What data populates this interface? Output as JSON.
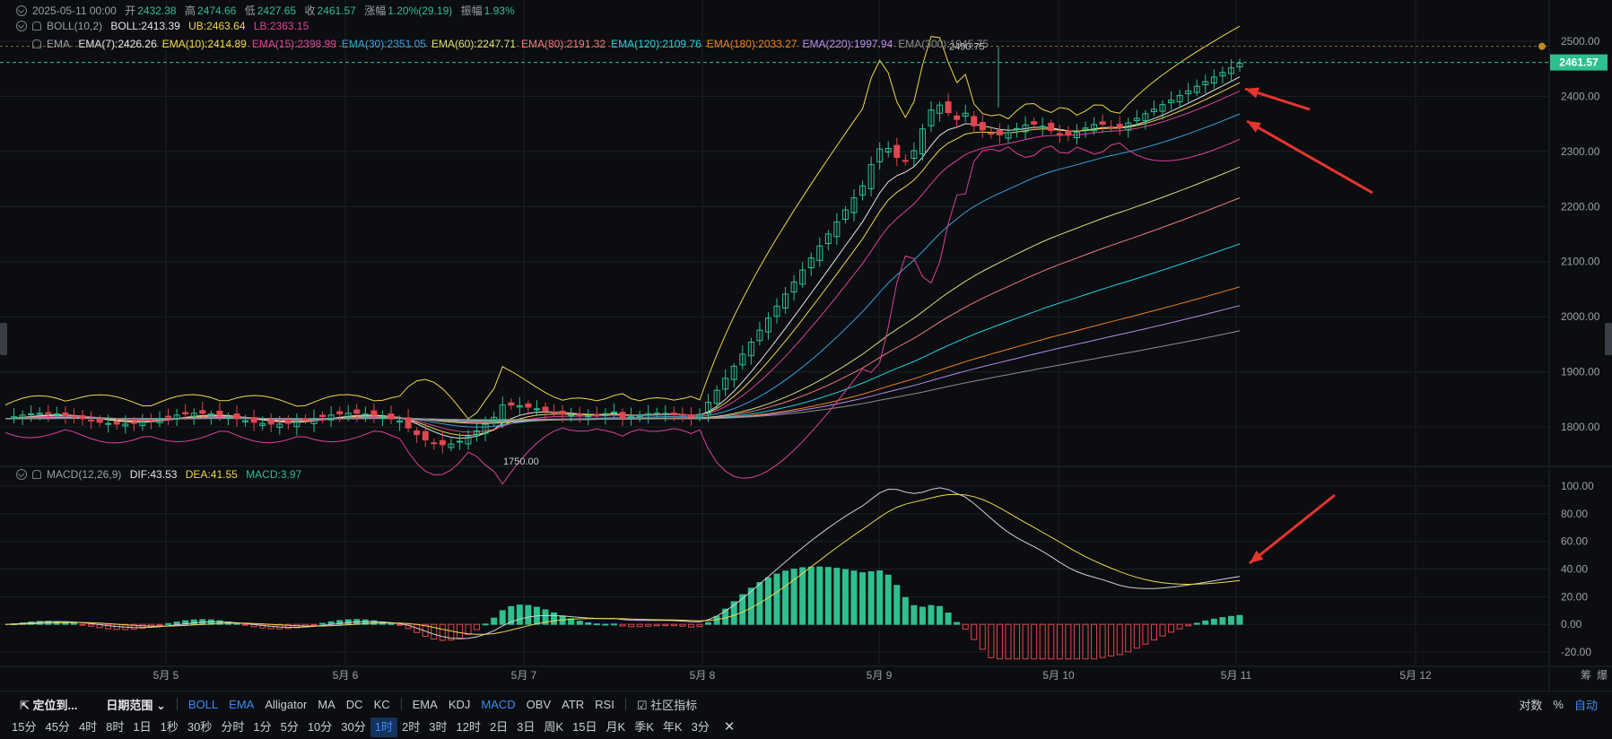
{
  "header": {
    "date": "2025-05-11 00:00",
    "open_label": "开",
    "open": "2432.38",
    "high_label": "高",
    "high": "2474.66",
    "low_label": "低",
    "low": "2427.65",
    "close_label": "收",
    "close": "2461.57",
    "change_label": "涨幅",
    "change": "1.20%(29.19)",
    "amp_label": "振幅",
    "amp": "1.93%"
  },
  "boll": {
    "name": "BOLL(10,2)",
    "mid": "BOLL:2413.39",
    "ub": "UB:2463.64",
    "lb": "LB:2363.15"
  },
  "ema": {
    "name": "EMA",
    "items": [
      {
        "label": "EMA(7):2426.26",
        "color": "#e6e6e6"
      },
      {
        "label": "EMA(10):2414.89",
        "color": "#f2d64b"
      },
      {
        "label": "EMA(15):2398.99",
        "color": "#e0409a"
      },
      {
        "label": "EMA(30):2351.05",
        "color": "#3aa0e0"
      },
      {
        "label": "EMA(60):2247.71",
        "color": "#d6dd7a"
      },
      {
        "label": "EMA(80):2191.32",
        "color": "#f07a7a"
      },
      {
        "label": "EMA(120):2109.76",
        "color": "#1fd3e0"
      },
      {
        "label": "EMA(180):2033.27",
        "color": "#f0801f"
      },
      {
        "label": "EMA(220):1997.94",
        "color": "#b98cf0"
      },
      {
        "label": "EMA(300):1945.75",
        "color": "#8c8c8c"
      }
    ]
  },
  "macd": {
    "name": "MACD(12,26,9)",
    "dif": "DIF:43.53",
    "dea": "DEA:41.55",
    "macd": "MACD:3.97"
  },
  "price_axis": [
    "2500.00",
    "2400.00",
    "2300.00",
    "2200.00",
    "2100.00",
    "2000.00",
    "1900.00",
    "1800.00"
  ],
  "last_price": "2461.57",
  "high_marker": "2490.75",
  "low_marker": "1750.00",
  "macd_axis": [
    "100.00",
    "80.00",
    "60.00",
    "40.00",
    "20.00",
    "0.00",
    "-20.00"
  ],
  "x_labels": [
    "5月 5",
    "5月 6",
    "5月 7",
    "5月 8",
    "5月 9",
    "5月 10",
    "5月 11",
    "5月 12"
  ],
  "corner": {
    "chips": "筹",
    "burst": "爆"
  },
  "toolbar1": {
    "locate": "定位到...",
    "date_range": "日期范围",
    "indicators": [
      "BOLL",
      "EMA",
      "Alligator",
      "MA",
      "DC",
      "KC"
    ],
    "indicators_active": [
      true,
      true,
      false,
      false,
      false,
      false
    ],
    "sub_indicators": [
      "EMA",
      "KDJ",
      "MACD",
      "OBV",
      "ATR",
      "RSI"
    ],
    "sub_active": [
      false,
      false,
      true,
      false,
      false,
      false
    ],
    "community": "社区指标",
    "log": "对数",
    "pct": "%",
    "auto": "自动"
  },
  "timeframes": [
    "15分",
    "45分",
    "4时",
    "8时",
    "1日",
    "1秒",
    "30秒",
    "分时",
    "1分",
    "5分",
    "10分",
    "30分",
    "1时",
    "2时",
    "3时",
    "12时",
    "2日",
    "3日",
    "周K",
    "15日",
    "月K",
    "季K",
    "年K",
    "3分"
  ],
  "active_timeframe": "1时",
  "chart_data": {
    "type": "candlestick",
    "price_range": [
      1710,
      2520
    ],
    "macd_range": [
      -30,
      110
    ],
    "colors": {
      "up": "#2fbf8f",
      "down": "#e0464f"
    }
  }
}
